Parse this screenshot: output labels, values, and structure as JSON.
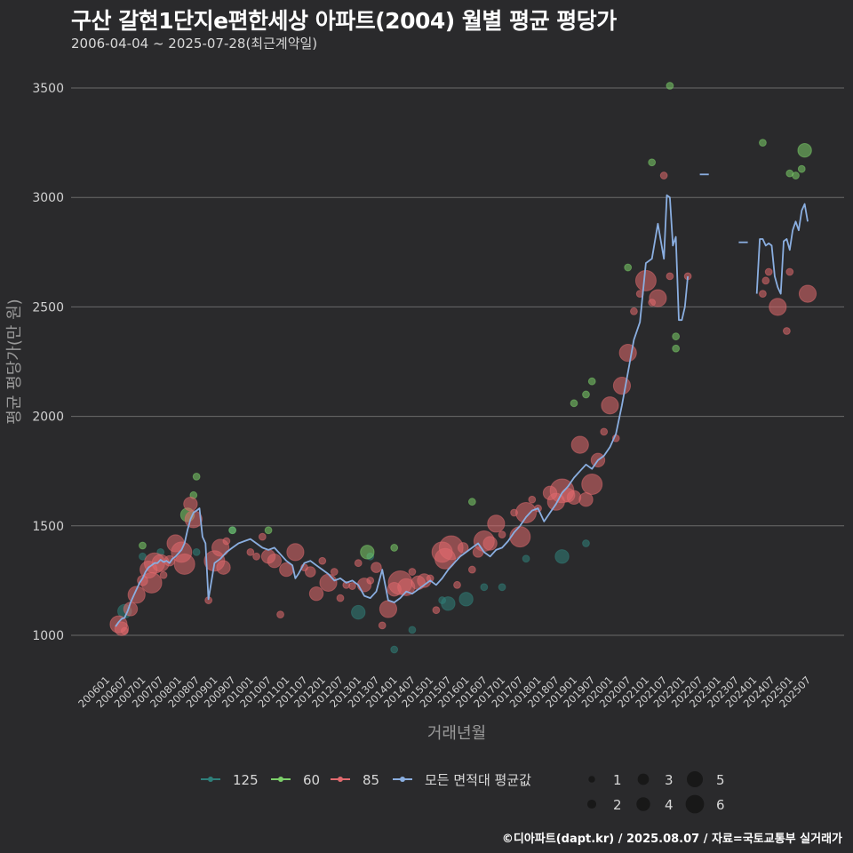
{
  "header": {
    "title": "구산 갈현1단지e편한세상 아파트(2004) 월별 평균 평당가",
    "subtitle": "2006-04-04 ~ 2025-07-28(최근계약일)"
  },
  "caption": "©디아파트(dapt.kr) / 2025.08.07 / 자료=국토교통부 실거래가",
  "colors": {
    "background": "#2a2a2c",
    "grid": "#6a6a6a",
    "s125": "#2f7f7a",
    "s60": "#7ccf6a",
    "s85": "#e06a6e",
    "avg": "#8aaee0"
  },
  "chart_data": {
    "type": "scatter",
    "title": "구산 갈현1단지e편한세상 아파트(2004) 월별 평균 평당가",
    "subtitle": "2006-04-04 ~ 2025-07-28(최근계약일)",
    "xlabel": "거래년월",
    "ylabel": "평균 평당가(만 원)",
    "ylim": [
      830,
      3580
    ],
    "yticks": [
      1000,
      1500,
      2000,
      2500,
      3000,
      3500
    ],
    "x_start": "2006-01",
    "x_end": "2025-09",
    "xticks": [
      "200601",
      "200607",
      "200701",
      "200707",
      "200801",
      "200807",
      "200901",
      "200907",
      "201001",
      "201007",
      "201101",
      "201107",
      "201201",
      "201207",
      "201301",
      "201307",
      "201401",
      "201407",
      "201501",
      "201507",
      "201601",
      "201607",
      "201701",
      "201707",
      "201801",
      "201807",
      "201901",
      "201907",
      "202001",
      "202007",
      "202101",
      "202107",
      "202201",
      "202207",
      "202301",
      "202307",
      "202401",
      "202407",
      "202501",
      "202507"
    ],
    "grid": true,
    "legend_position": "bottom",
    "legend_items": [
      {
        "key": "s125",
        "label": "125"
      },
      {
        "key": "s60",
        "label": "60"
      },
      {
        "key": "s85",
        "label": "85"
      },
      {
        "key": "avg",
        "label": "모든 면적대 평균값"
      }
    ],
    "size_legend": [
      1,
      2,
      3,
      4,
      5,
      6
    ],
    "average_line": [
      [
        "2006-04",
        1040
      ],
      [
        "2006-05",
        1060
      ],
      [
        "2006-06",
        1075
      ],
      [
        "2006-07",
        1080
      ],
      [
        "2006-08",
        1110
      ],
      [
        "2006-09",
        1150
      ],
      [
        "2006-10",
        1180
      ],
      [
        "2006-11",
        1210
      ],
      [
        "2006-12",
        1240
      ],
      [
        "2007-01",
        1260
      ],
      [
        "2007-02",
        1290
      ],
      [
        "2007-03",
        1310
      ],
      [
        "2007-04",
        1320
      ],
      [
        "2007-05",
        1330
      ],
      [
        "2007-06",
        1330
      ],
      [
        "2007-07",
        1345
      ],
      [
        "2007-08",
        1335
      ],
      [
        "2007-09",
        1340
      ],
      [
        "2007-10",
        1330
      ],
      [
        "2007-11",
        1350
      ],
      [
        "2007-12",
        1360
      ],
      [
        "2008-01",
        1375
      ],
      [
        "2008-02",
        1390
      ],
      [
        "2008-03",
        1420
      ],
      [
        "2008-04",
        1480
      ],
      [
        "2008-05",
        1530
      ],
      [
        "2008-06",
        1560
      ],
      [
        "2008-07",
        1570
      ],
      [
        "2008-08",
        1580
      ],
      [
        "2008-09",
        1450
      ],
      [
        "2008-10",
        1420
      ],
      [
        "2008-11",
        1165
      ],
      [
        "2009-01",
        1330
      ],
      [
        "2009-03",
        1350
      ],
      [
        "2009-05",
        1380
      ],
      [
        "2009-07",
        1400
      ],
      [
        "2009-09",
        1420
      ],
      [
        "2009-11",
        1430
      ],
      [
        "2010-01",
        1440
      ],
      [
        "2010-03",
        1420
      ],
      [
        "2010-05",
        1400
      ],
      [
        "2010-07",
        1390
      ],
      [
        "2010-09",
        1400
      ],
      [
        "2010-11",
        1370
      ],
      [
        "2011-01",
        1340
      ],
      [
        "2011-03",
        1320
      ],
      [
        "2011-04",
        1260
      ],
      [
        "2011-05",
        1280
      ],
      [
        "2011-07",
        1330
      ],
      [
        "2011-09",
        1340
      ],
      [
        "2011-11",
        1320
      ],
      [
        "2012-01",
        1300
      ],
      [
        "2012-03",
        1280
      ],
      [
        "2012-05",
        1250
      ],
      [
        "2012-07",
        1260
      ],
      [
        "2012-09",
        1240
      ],
      [
        "2012-11",
        1250
      ],
      [
        "2013-01",
        1230
      ],
      [
        "2013-03",
        1180
      ],
      [
        "2013-05",
        1170
      ],
      [
        "2013-07",
        1200
      ],
      [
        "2013-09",
        1300
      ],
      [
        "2013-11",
        1160
      ],
      [
        "2014-01",
        1150
      ],
      [
        "2014-03",
        1170
      ],
      [
        "2014-05",
        1200
      ],
      [
        "2014-07",
        1190
      ],
      [
        "2014-09",
        1210
      ],
      [
        "2014-11",
        1230
      ],
      [
        "2015-01",
        1250
      ],
      [
        "2015-03",
        1230
      ],
      [
        "2015-05",
        1260
      ],
      [
        "2015-07",
        1300
      ],
      [
        "2015-09",
        1330
      ],
      [
        "2015-11",
        1360
      ],
      [
        "2016-01",
        1380
      ],
      [
        "2016-03",
        1400
      ],
      [
        "2016-05",
        1420
      ],
      [
        "2016-07",
        1380
      ],
      [
        "2016-09",
        1360
      ],
      [
        "2016-11",
        1390
      ],
      [
        "2017-01",
        1400
      ],
      [
        "2017-03",
        1430
      ],
      [
        "2017-05",
        1470
      ],
      [
        "2017-07",
        1500
      ],
      [
        "2017-09",
        1540
      ],
      [
        "2017-11",
        1570
      ],
      [
        "2018-01",
        1580
      ],
      [
        "2018-03",
        1520
      ],
      [
        "2018-05",
        1560
      ],
      [
        "2018-07",
        1600
      ],
      [
        "2018-09",
        1650
      ],
      [
        "2018-11",
        1680
      ],
      [
        "2019-01",
        1720
      ],
      [
        "2019-03",
        1750
      ],
      [
        "2019-05",
        1780
      ],
      [
        "2019-07",
        1760
      ],
      [
        "2019-09",
        1800
      ],
      [
        "2019-11",
        1820
      ],
      [
        "2020-01",
        1860
      ],
      [
        "2020-03",
        1920
      ],
      [
        "2020-05",
        2050
      ],
      [
        "2020-07",
        2200
      ],
      [
        "2020-09",
        2350
      ],
      [
        "2020-11",
        2430
      ],
      [
        "2021-01",
        2700
      ],
      [
        "2021-03",
        2720
      ],
      [
        "2021-05",
        2880
      ],
      [
        "2021-07",
        2720
      ],
      [
        "2021-08",
        3010
      ],
      [
        "2021-09",
        3000
      ],
      [
        "2021-10",
        2780
      ],
      [
        "2021-11",
        2820
      ],
      [
        "2021-12",
        2440
      ],
      [
        "2022-01",
        2440
      ],
      [
        "2022-02",
        2500
      ],
      [
        "2022-03",
        2640
      ]
    ],
    "average_line_segments": [
      [
        [
          "2022-07",
          3105
        ],
        [
          "2022-10",
          3105
        ]
      ],
      [
        [
          "2023-08",
          2795
        ],
        [
          "2023-11",
          2795
        ]
      ],
      [
        [
          "2024-02",
          2560
        ],
        [
          "2024-03",
          2810
        ],
        [
          "2024-04",
          2810
        ],
        [
          "2024-05",
          2780
        ],
        [
          "2024-06",
          2790
        ],
        [
          "2024-07",
          2780
        ],
        [
          "2024-08",
          2640
        ],
        [
          "2024-09",
          2590
        ],
        [
          "2024-10",
          2560
        ],
        [
          "2024-11",
          2800
        ],
        [
          "2024-12",
          2810
        ],
        [
          "2025-01",
          2760
        ],
        [
          "2025-02",
          2850
        ],
        [
          "2025-03",
          2890
        ],
        [
          "2025-04",
          2850
        ],
        [
          "2025-05",
          2940
        ],
        [
          "2025-06",
          2970
        ],
        [
          "2025-07",
          2890
        ]
      ]
    ],
    "scatter": {
      "s125": [
        [
          "2006-07",
          1110,
          3
        ],
        [
          "2007-01",
          1360,
          1
        ],
        [
          "2007-07",
          1380,
          1
        ],
        [
          "2008-07",
          1380,
          1
        ],
        [
          "2009-07",
          1480,
          1
        ],
        [
          "2013-01",
          1105,
          3
        ],
        [
          "2013-05",
          1360,
          1
        ],
        [
          "2014-01",
          935,
          1
        ],
        [
          "2014-07",
          1025,
          1
        ],
        [
          "2015-05",
          1160,
          1
        ],
        [
          "2015-07",
          1145,
          3
        ],
        [
          "2016-01",
          1165,
          3
        ],
        [
          "2016-07",
          1220,
          1
        ],
        [
          "2017-01",
          1220,
          1
        ],
        [
          "2017-09",
          1350,
          1
        ],
        [
          "2018-09",
          1360,
          3
        ],
        [
          "2019-05",
          1420,
          1
        ]
      ],
      "s60": [
        [
          "2007-01",
          1410,
          1
        ],
        [
          "2008-04",
          1550,
          3
        ],
        [
          "2008-06",
          1640,
          1
        ],
        [
          "2008-07",
          1725,
          1
        ],
        [
          "2009-07",
          1480,
          1
        ],
        [
          "2010-07",
          1480,
          1
        ],
        [
          "2013-04",
          1380,
          3
        ],
        [
          "2014-01",
          1400,
          1
        ],
        [
          "2016-03",
          1610,
          1
        ],
        [
          "2019-01",
          2060,
          1
        ],
        [
          "2019-05",
          2100,
          1
        ],
        [
          "2019-07",
          2160,
          1
        ],
        [
          "2020-07",
          2680,
          1
        ],
        [
          "2021-03",
          3160,
          1
        ],
        [
          "2021-09",
          3510,
          1
        ],
        [
          "2021-11",
          2310,
          1
        ],
        [
          "2021-11",
          2365,
          1
        ],
        [
          "2024-04",
          3250,
          1
        ],
        [
          "2025-01",
          3110,
          1
        ],
        [
          "2025-03",
          3100,
          1
        ],
        [
          "2025-05",
          3130,
          1
        ],
        [
          "2025-06",
          3215,
          3
        ]
      ],
      "s85": [
        [
          "2006-05",
          1050,
          4
        ],
        [
          "2006-06",
          1030,
          3
        ],
        [
          "2006-07",
          1020,
          1
        ],
        [
          "2006-09",
          1120,
          3
        ],
        [
          "2006-11",
          1185,
          4
        ],
        [
          "2007-01",
          1250,
          2
        ],
        [
          "2007-03",
          1300,
          4
        ],
        [
          "2007-04",
          1240,
          5
        ],
        [
          "2007-05",
          1330,
          5
        ],
        [
          "2007-07",
          1330,
          4
        ],
        [
          "2007-08",
          1275,
          1
        ],
        [
          "2007-10",
          1340,
          2
        ],
        [
          "2007-12",
          1420,
          4
        ],
        [
          "2008-02",
          1380,
          5
        ],
        [
          "2008-03",
          1325,
          5
        ],
        [
          "2008-05",
          1600,
          3
        ],
        [
          "2008-06",
          1530,
          4
        ],
        [
          "2008-11",
          1160,
          1
        ],
        [
          "2009-01",
          1340,
          5
        ],
        [
          "2009-03",
          1400,
          4
        ],
        [
          "2009-04",
          1310,
          3
        ],
        [
          "2009-05",
          1430,
          1
        ],
        [
          "2010-01",
          1380,
          1
        ],
        [
          "2010-03",
          1360,
          1
        ],
        [
          "2010-05",
          1450,
          1
        ],
        [
          "2010-07",
          1360,
          3
        ],
        [
          "2010-09",
          1340,
          3
        ],
        [
          "2010-11",
          1095,
          1
        ],
        [
          "2011-01",
          1300,
          3
        ],
        [
          "2011-04",
          1380,
          4
        ],
        [
          "2011-07",
          1310,
          1
        ],
        [
          "2011-09",
          1290,
          2
        ],
        [
          "2011-11",
          1190,
          3
        ],
        [
          "2012-01",
          1340,
          1
        ],
        [
          "2012-03",
          1240,
          4
        ],
        [
          "2012-05",
          1290,
          1
        ],
        [
          "2012-07",
          1170,
          1
        ],
        [
          "2012-09",
          1230,
          1
        ],
        [
          "2012-11",
          1225,
          1
        ],
        [
          "2013-01",
          1330,
          1
        ],
        [
          "2013-03",
          1230,
          3
        ],
        [
          "2013-05",
          1250,
          1
        ],
        [
          "2013-07",
          1310,
          2
        ],
        [
          "2013-09",
          1045,
          1
        ],
        [
          "2013-11",
          1120,
          4
        ],
        [
          "2014-01",
          1210,
          3
        ],
        [
          "2014-03",
          1240,
          6
        ],
        [
          "2014-05",
          1220,
          4
        ],
        [
          "2014-07",
          1290,
          1
        ],
        [
          "2014-09",
          1240,
          3
        ],
        [
          "2014-11",
          1250,
          3
        ],
        [
          "2015-01",
          1260,
          1
        ],
        [
          "2015-03",
          1115,
          1
        ],
        [
          "2015-05",
          1380,
          5
        ],
        [
          "2015-06",
          1350,
          5
        ],
        [
          "2015-08",
          1400,
          6
        ],
        [
          "2015-10",
          1230,
          1
        ],
        [
          "2015-12",
          1400,
          2
        ],
        [
          "2016-03",
          1300,
          1
        ],
        [
          "2016-05",
          1380,
          2
        ],
        [
          "2016-07",
          1430,
          5
        ],
        [
          "2016-09",
          1420,
          3
        ],
        [
          "2016-11",
          1510,
          4
        ],
        [
          "2017-01",
          1460,
          1
        ],
        [
          "2017-05",
          1560,
          1
        ],
        [
          "2017-07",
          1450,
          5
        ],
        [
          "2017-09",
          1560,
          5
        ],
        [
          "2017-11",
          1620,
          1
        ],
        [
          "2018-01",
          1580,
          1
        ],
        [
          "2018-05",
          1650,
          3
        ],
        [
          "2018-07",
          1610,
          4
        ],
        [
          "2018-09",
          1660,
          6
        ],
        [
          "2018-11",
          1640,
          3
        ],
        [
          "2019-01",
          1630,
          3
        ],
        [
          "2019-03",
          1870,
          4
        ],
        [
          "2019-05",
          1620,
          3
        ],
        [
          "2019-07",
          1690,
          5
        ],
        [
          "2019-09",
          1800,
          3
        ],
        [
          "2019-11",
          1930,
          1
        ],
        [
          "2020-01",
          2050,
          4
        ],
        [
          "2020-03",
          1900,
          1
        ],
        [
          "2020-05",
          2140,
          4
        ],
        [
          "2020-07",
          2290,
          4
        ],
        [
          "2020-09",
          2480,
          1
        ],
        [
          "2020-11",
          2560,
          1
        ],
        [
          "2021-01",
          2620,
          5
        ],
        [
          "2021-03",
          2520,
          1
        ],
        [
          "2021-05",
          2540,
          4
        ],
        [
          "2021-07",
          3100,
          1
        ],
        [
          "2021-09",
          2640,
          1
        ],
        [
          "2022-03",
          2640,
          1
        ],
        [
          "2024-04",
          2560,
          1
        ],
        [
          "2024-05",
          2620,
          1
        ],
        [
          "2024-06",
          2660,
          1
        ],
        [
          "2024-09",
          2500,
          4
        ],
        [
          "2024-12",
          2390,
          1
        ],
        [
          "2025-01",
          2660,
          1
        ],
        [
          "2025-07",
          2560,
          4
        ]
      ]
    }
  }
}
